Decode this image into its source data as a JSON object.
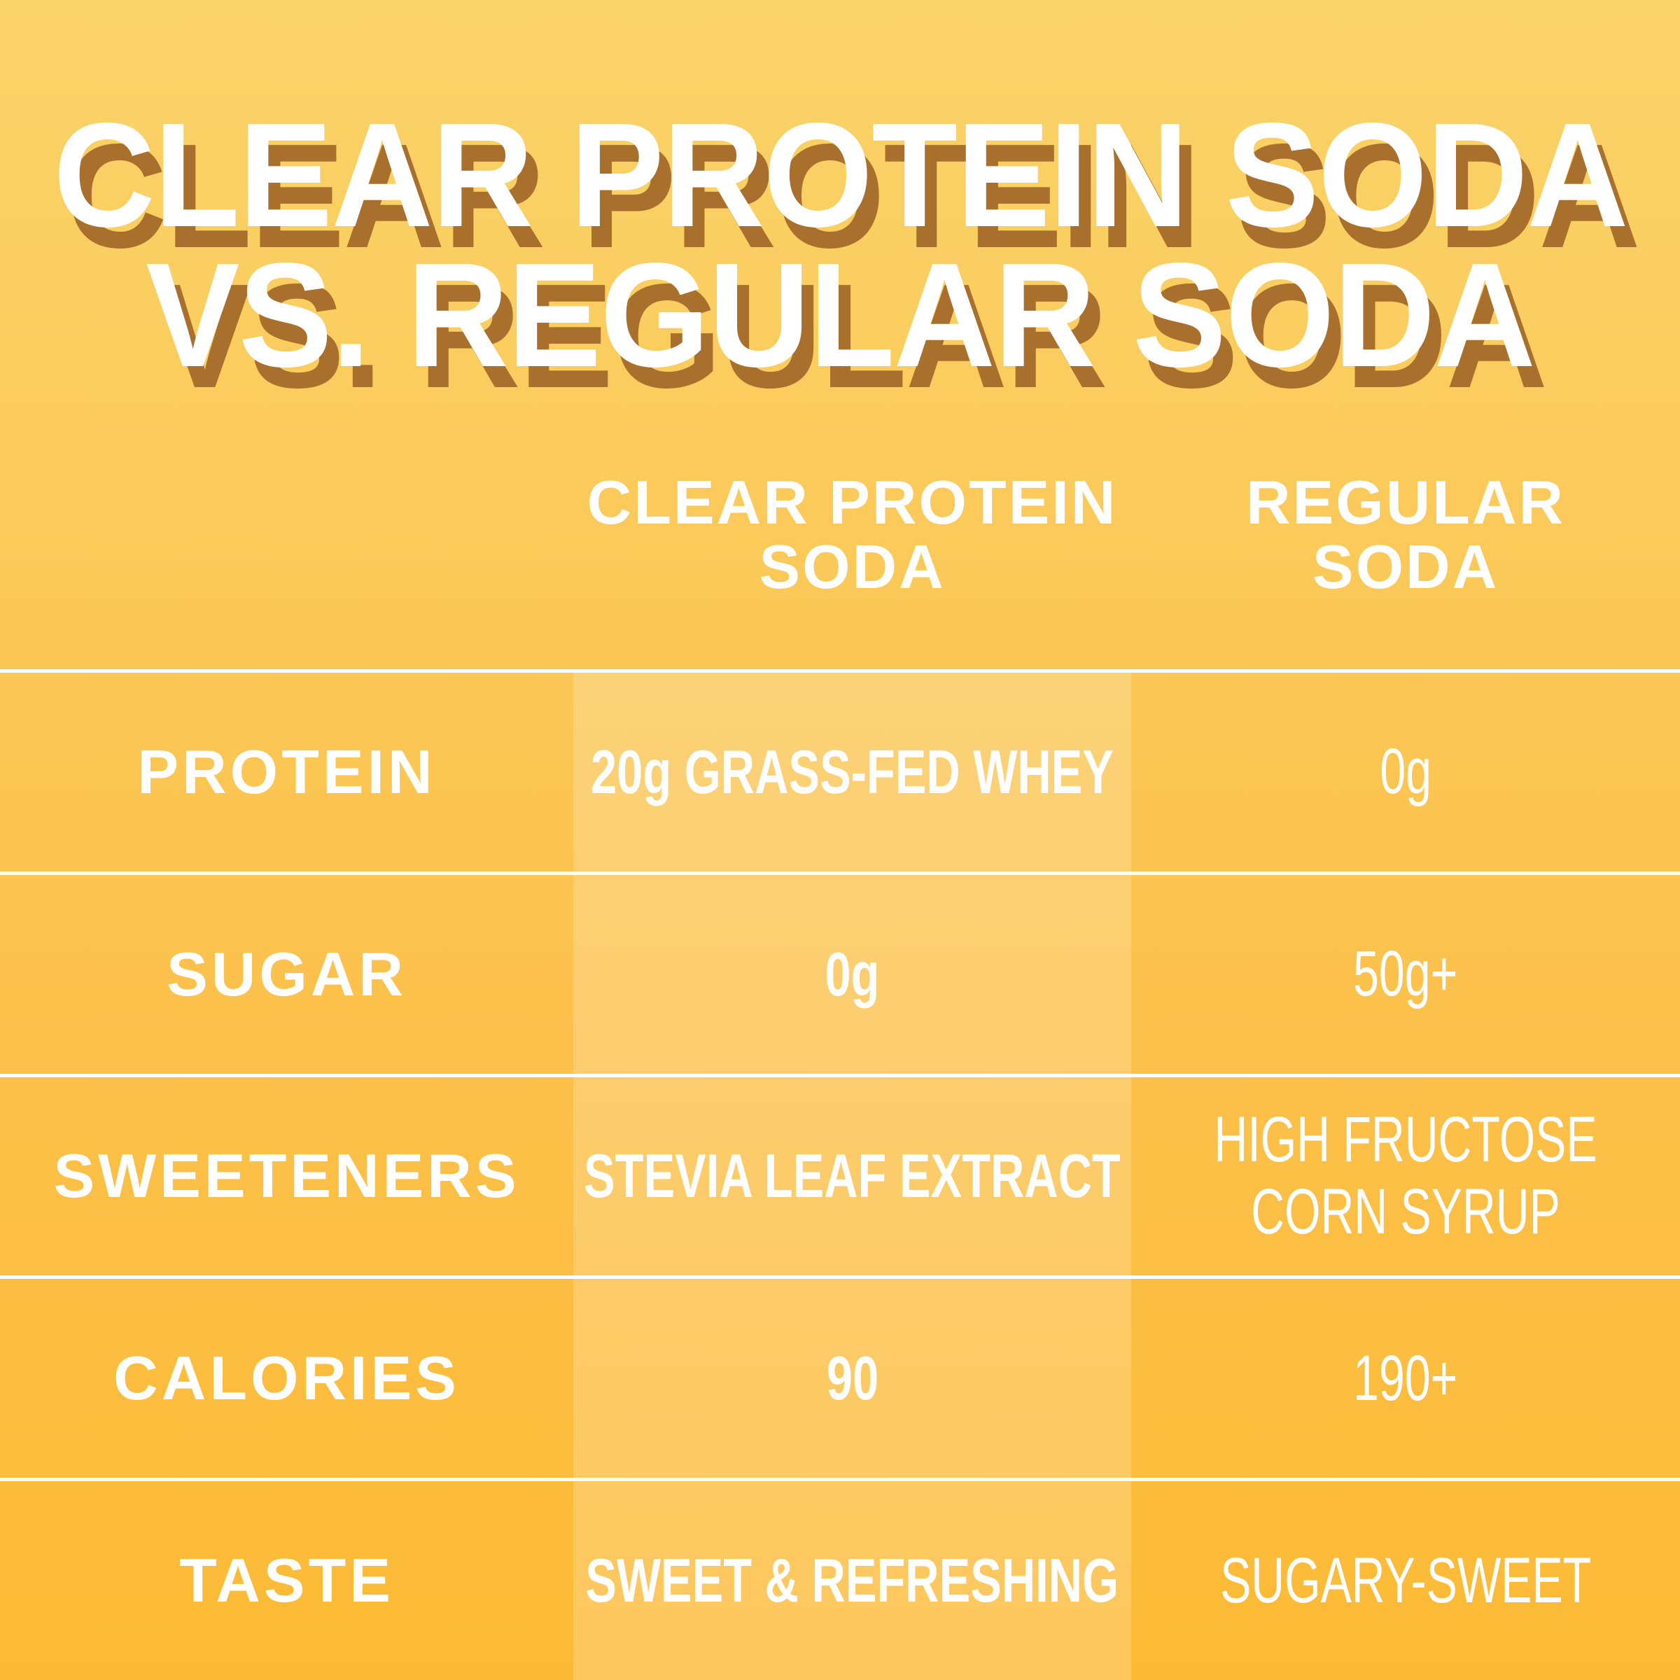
{
  "title": {
    "line1": "CLEAR PROTEIN SODA",
    "line2": "VS. REGULAR SODA"
  },
  "table": {
    "column_headers": {
      "clear": {
        "line1": "CLEAR PROTEIN",
        "line2": "SODA"
      },
      "regular": {
        "line1": "REGULAR",
        "line2": "SODA"
      }
    },
    "rows": [
      {
        "label": "PROTEIN",
        "clear": "20g GRASS-FED WHEY",
        "regular": "0g"
      },
      {
        "label": "SUGAR",
        "clear": "0g",
        "regular": "50g+"
      },
      {
        "label": "SWEETENERS",
        "clear": "STEVIA LEAF EXTRACT",
        "regular_lines": [
          "HIGH FRUCTOSE",
          "CORN SYRUP"
        ]
      },
      {
        "label": "CALORIES",
        "clear": "90",
        "regular": "190+"
      },
      {
        "label": "TASTE",
        "clear": "SWEET & REFRESHING",
        "regular": "SUGARY-SWEET"
      }
    ]
  },
  "colors": {
    "background_top": "#fad369",
    "background_bottom": "#fcba34",
    "title_text": "#ffffff",
    "title_shadow": "#a96f2c",
    "table_text": "#ffffff",
    "separator_line": "#ffffff",
    "highlight_band": "rgba(255,255,255,0.20)"
  }
}
